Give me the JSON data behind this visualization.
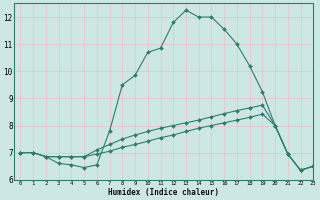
{
  "xlabel": "Humidex (Indice chaleur)",
  "xlim": [
    -0.5,
    23
  ],
  "ylim": [
    6,
    12.5
  ],
  "bg_color": "#cde8e4",
  "plot_bg_color": "#cde8e4",
  "line_color": "#2e7d6e",
  "grid_color": "#e8c8c8",
  "spine_color": "#2e7d6e",
  "line1_x": [
    0,
    1,
    2,
    3,
    4,
    5,
    6,
    7,
    8,
    9,
    10,
    11,
    12,
    13,
    14,
    15,
    16,
    17,
    18,
    19,
    20,
    21,
    22,
    23
  ],
  "line1_y": [
    7.0,
    7.0,
    6.85,
    6.6,
    6.55,
    6.45,
    6.55,
    7.8,
    9.5,
    9.85,
    10.7,
    10.85,
    11.8,
    12.25,
    12.0,
    12.0,
    11.55,
    11.0,
    10.2,
    9.25,
    8.0,
    6.95,
    6.35,
    6.5
  ],
  "line2_x": [
    0,
    1,
    2,
    3,
    4,
    5,
    6,
    7,
    8,
    9,
    10,
    11,
    12,
    13,
    14,
    15,
    16,
    17,
    18,
    19,
    20,
    21,
    22,
    23
  ],
  "line2_y": [
    7.0,
    7.0,
    6.85,
    6.85,
    6.85,
    6.85,
    7.1,
    7.3,
    7.5,
    7.65,
    7.78,
    7.9,
    8.0,
    8.1,
    8.2,
    8.32,
    8.44,
    8.55,
    8.65,
    8.75,
    8.0,
    6.95,
    6.35,
    6.5
  ],
  "line3_x": [
    0,
    1,
    2,
    3,
    4,
    5,
    6,
    7,
    8,
    9,
    10,
    11,
    12,
    13,
    14,
    15,
    16,
    17,
    18,
    19,
    20,
    21,
    22,
    23
  ],
  "line3_y": [
    7.0,
    7.0,
    6.85,
    6.85,
    6.85,
    6.85,
    6.95,
    7.05,
    7.2,
    7.3,
    7.42,
    7.55,
    7.65,
    7.78,
    7.9,
    8.0,
    8.1,
    8.2,
    8.3,
    8.42,
    8.0,
    6.95,
    6.35,
    6.5
  ],
  "xticks": [
    0,
    1,
    2,
    3,
    4,
    5,
    6,
    7,
    8,
    9,
    10,
    11,
    12,
    13,
    14,
    15,
    16,
    17,
    18,
    19,
    20,
    21,
    22,
    23
  ],
  "yticks": [
    6,
    7,
    8,
    9,
    10,
    11,
    12
  ],
  "markersize": 2.0
}
